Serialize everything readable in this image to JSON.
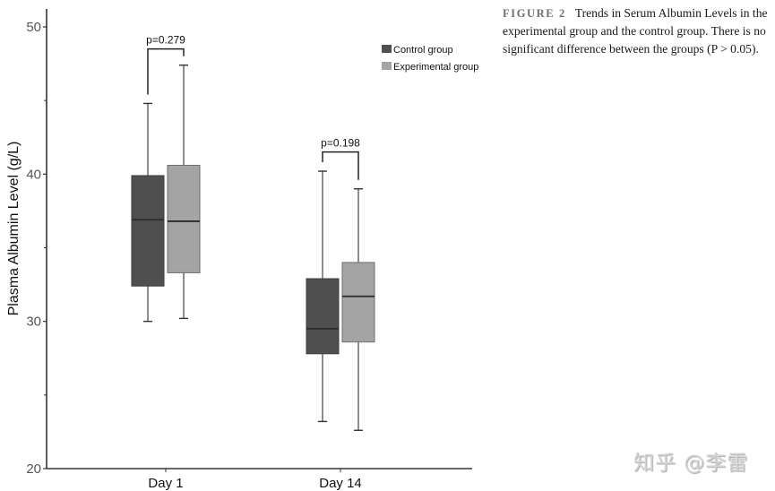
{
  "caption": {
    "figure_label": "FIGURE 2",
    "text": "Trends in Serum Albumin Levels in the experimental group and the control group. There is no significant difference between the groups (P > 0.05)."
  },
  "watermark": "知乎 @李雷",
  "chart_data": {
    "type": "boxplot",
    "title": "",
    "xlabel": "",
    "ylabel": "Plasma Albumin Level (g/L)",
    "ylim": [
      20,
      51
    ],
    "yticks": [
      20,
      30,
      40,
      50
    ],
    "ytick_labels": [
      "20",
      "30",
      "40",
      "50"
    ],
    "y_minor_ticks": [
      25,
      35,
      45
    ],
    "grid": false,
    "legend_position": "top-right",
    "categories": [
      "Day 1",
      "Day 14"
    ],
    "series": [
      {
        "name": "Control group",
        "color": "#4f4f4f",
        "boxes": [
          {
            "whisker_low": 30.0,
            "q1": 32.4,
            "median": 36.9,
            "q3": 39.9,
            "whisker_high": 44.8
          },
          {
            "whisker_low": 23.2,
            "q1": 27.8,
            "median": 29.5,
            "q3": 32.9,
            "whisker_high": 40.2
          }
        ]
      },
      {
        "name": "Experimental group",
        "color": "#a4a4a4",
        "boxes": [
          {
            "whisker_low": 30.2,
            "q1": 33.3,
            "median": 36.8,
            "q3": 40.6,
            "whisker_high": 47.4
          },
          {
            "whisker_low": 22.6,
            "q1": 28.6,
            "median": 31.7,
            "q3": 34.0,
            "whisker_high": 39.0
          }
        ]
      }
    ],
    "annotations": [
      {
        "category": "Day 1",
        "text": "p=0.279",
        "bracket_y": 48.5
      },
      {
        "category": "Day 14",
        "text": "p=0.198",
        "bracket_y": 41.5
      }
    ]
  }
}
